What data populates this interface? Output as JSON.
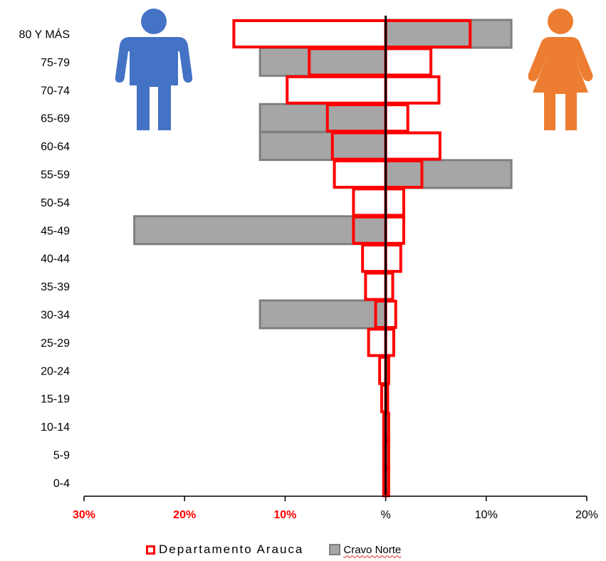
{
  "chart_data": {
    "type": "bar",
    "subtype": "population-pyramid",
    "orientation": "horizontal",
    "categories": [
      "80 Y MÁS",
      "75-79",
      "70-74",
      "65-69",
      "60-64",
      "55-59",
      "50-54",
      "45-49",
      "40-44",
      "35-39",
      "30-34",
      "25-29",
      "20-24",
      "15-19",
      "10-14",
      "5-9",
      "0-4"
    ],
    "series": [
      {
        "name": "Cravo Norte",
        "style": "filled",
        "fill": "#a6a6a6",
        "stroke": "#7f7f7f",
        "male": [
          0,
          12.5,
          0,
          12.5,
          12.5,
          0,
          0,
          25,
          0,
          0,
          12.5,
          0,
          0,
          0,
          0,
          0,
          0
        ],
        "female": [
          12.5,
          0,
          0,
          0,
          0,
          12.5,
          0,
          0,
          0,
          0,
          0,
          0,
          0,
          0,
          0,
          0,
          0
        ]
      },
      {
        "name": "Departamento Arauca",
        "style": "outline",
        "stroke": "#ff0000",
        "male": [
          15.1,
          7.6,
          9.8,
          5.8,
          5.3,
          5.1,
          3.2,
          3.2,
          2.3,
          2.0,
          1.0,
          1.7,
          0.6,
          0.4,
          0.2,
          0.2,
          0.2
        ],
        "female": [
          8.4,
          4.5,
          5.3,
          2.2,
          5.4,
          3.6,
          1.8,
          1.8,
          1.5,
          0.7,
          1.0,
          0.8,
          0.3,
          0.2,
          0.3,
          0.3,
          0.3
        ]
      }
    ],
    "x_ticks": [
      "30%",
      "20%",
      "10%",
      "%",
      "10%",
      "20%"
    ],
    "x_tick_values": [
      -30,
      -20,
      -10,
      0,
      10,
      20
    ],
    "xlim": [
      -30,
      20
    ],
    "grid": false,
    "legend_position": "bottom",
    "colors": {
      "tick_negative": "#ff0000",
      "tick_positive": "#000000",
      "male_icon": "#4472c4",
      "female_icon": "#ed7d31"
    }
  },
  "legend": {
    "item1": "Departamento Arauca",
    "item2": "Cravo Norte"
  }
}
